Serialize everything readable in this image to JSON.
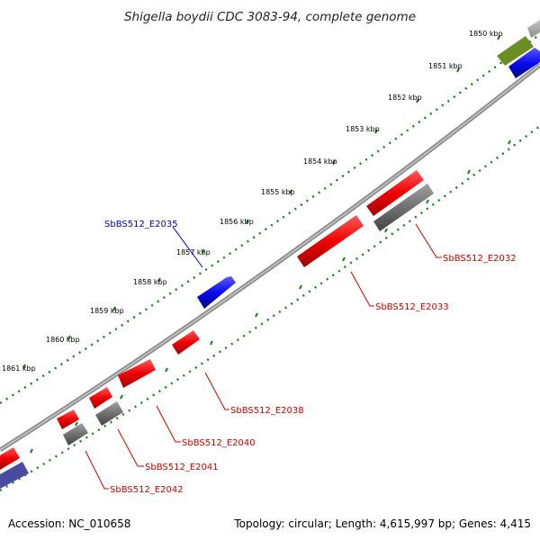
{
  "title": "Shigella boydii CDC 3083-94, complete genome",
  "footer": {
    "accession": "Accession: NC_010658",
    "summary": "Topology: circular; Length: 4,615,997 bp; Genes: 4,415"
  },
  "colors": {
    "backbone": "#8f8f8f",
    "tick_green": "#1f7a1f",
    "gene_red": "#f00000",
    "gene_blue": "#0a0af0",
    "gene_gray": "#707070",
    "gene_olive": "#6b8e23",
    "gene_navy": "#4a4aa0",
    "label_red": "#cc0000",
    "label_blue": "#0000cc"
  },
  "scale_ticks": [
    "1850 kbp",
    "1851 kbp",
    "1852 kbp",
    "1853 kbp",
    "1854 kbp",
    "1855 kbp",
    "1856 kbp",
    "1857 kbp",
    "1858 kbp",
    "1859 kbp",
    "1860 kbp",
    "1861 kbp"
  ],
  "gene_labels": [
    {
      "text": "SbBS512_E2035",
      "color": "blue"
    },
    {
      "text": "SbBS512_E2032",
      "color": "red"
    },
    {
      "text": "SbBS512_E2033",
      "color": "red"
    },
    {
      "text": "SbBS512_E2038",
      "color": "red"
    },
    {
      "text": "SbBS512_E2040",
      "color": "red"
    },
    {
      "text": "SbBS512_E2041",
      "color": "red"
    },
    {
      "text": "SbBS512_E2042",
      "color": "red"
    }
  ]
}
